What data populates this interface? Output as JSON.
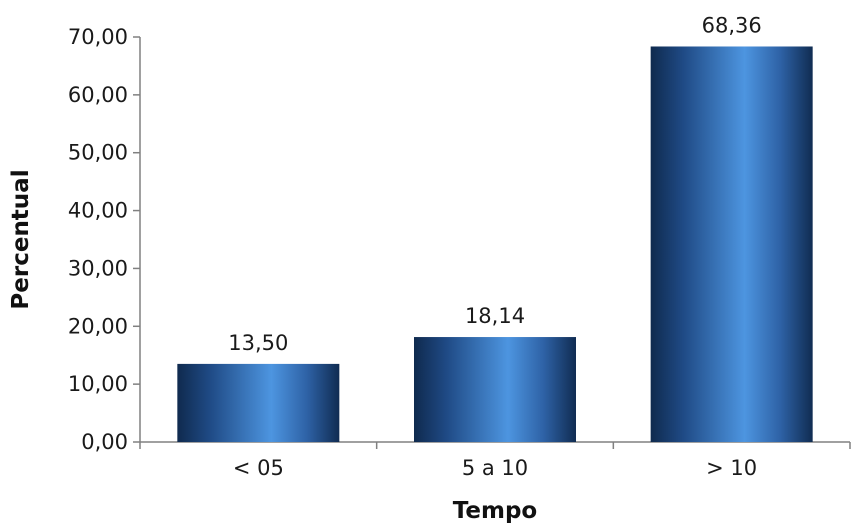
{
  "chart_data": {
    "type": "bar",
    "categories": [
      "< 05",
      "5 a 10",
      "> 10"
    ],
    "values": [
      13.5,
      18.14,
      68.36
    ],
    "data_labels": [
      "13,50",
      "18,14",
      "68,36"
    ],
    "xlabel": "Tempo",
    "ylabel": "Percentual",
    "ylim": [
      0,
      70
    ],
    "yticks": [
      0,
      10,
      20,
      30,
      40,
      50,
      60,
      70
    ],
    "ytick_labels": [
      "0,00",
      "10,00",
      "20,00",
      "30,00",
      "40,00",
      "50,00",
      "60,00",
      "70,00"
    ],
    "grid": false,
    "legend": "none",
    "bar_color": "#3a78c4",
    "bar_color_dark": "#0f2a4e",
    "bar_color_light": "#5ba3ea"
  }
}
